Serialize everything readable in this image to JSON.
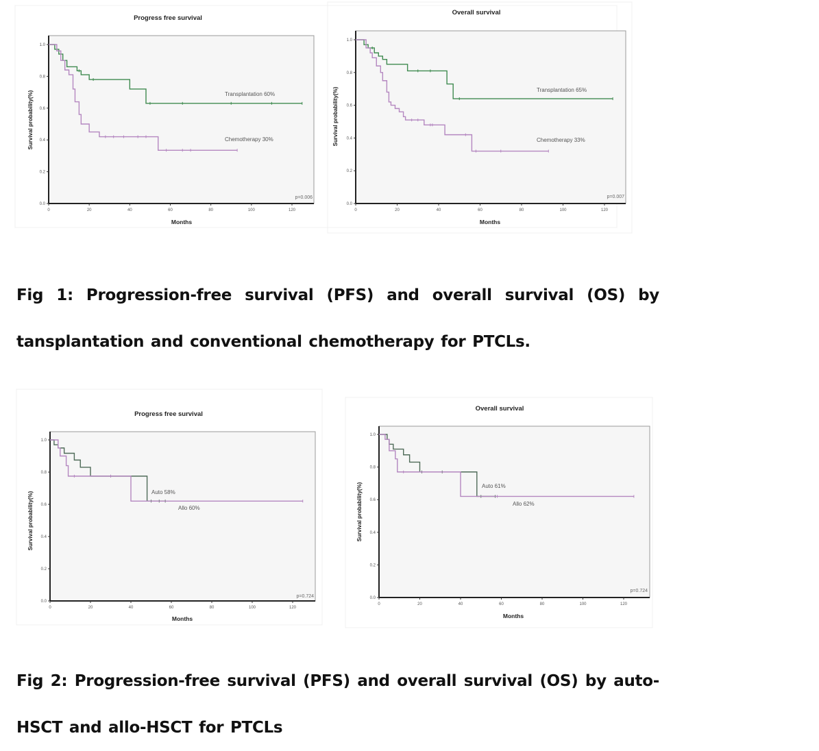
{
  "colors": {
    "transplant": "#3f8a4f",
    "chemo": "#b487c0",
    "auto": "#4f6b58",
    "allo": "#b487c0",
    "plot_bg": "#f6f6f6"
  },
  "chart_data": [
    {
      "type": "line",
      "title": "Progress free survival",
      "xlabel": "Months",
      "ylabel": "Survival probability(%)",
      "xlim": [
        0,
        130
      ],
      "ylim": [
        0,
        1.05
      ],
      "xticks": [
        "0",
        "20",
        "40",
        "60",
        "80",
        "100",
        "120"
      ],
      "yticks": [
        "0.0",
        "0.2",
        "0.4",
        "0.6",
        "0.8",
        "1.0"
      ],
      "p_value": "p=0.006",
      "series": [
        {
          "name": "Transplantation 60%",
          "color_key": "transplant",
          "steps": [
            [
              0,
              1
            ],
            [
              3,
              0.97
            ],
            [
              5,
              0.94
            ],
            [
              7,
              0.9
            ],
            [
              9,
              0.86
            ],
            [
              14,
              0.835
            ],
            [
              16,
              0.81
            ],
            [
              20,
              0.78
            ],
            [
              40,
              0.72
            ],
            [
              48,
              0.63
            ]
          ],
          "end": 125,
          "censored": [
            15,
            22,
            50,
            66,
            90,
            110,
            125
          ]
        },
        {
          "name": "Chemotherapy 30%",
          "color_key": "chemo",
          "steps": [
            [
              0,
              1
            ],
            [
              4,
              0.96
            ],
            [
              6,
              0.9
            ],
            [
              8,
              0.84
            ],
            [
              10,
              0.81
            ],
            [
              12,
              0.72
            ],
            [
              13,
              0.64
            ],
            [
              15,
              0.56
            ],
            [
              16,
              0.5
            ],
            [
              20,
              0.45
            ],
            [
              25,
              0.42
            ],
            [
              54,
              0.335
            ]
          ],
          "end": 93,
          "censored": [
            28,
            32,
            37,
            44,
            48,
            58,
            66,
            70,
            93
          ]
        }
      ]
    },
    {
      "type": "line",
      "title": "Overall survival",
      "xlabel": "Months",
      "ylabel": "Survival probability(%)",
      "xlim": [
        0,
        130
      ],
      "ylim": [
        0,
        1.05
      ],
      "xticks": [
        "0",
        "20",
        "40",
        "60",
        "80",
        "100",
        "120"
      ],
      "yticks": [
        "0.0",
        "0.2",
        "0.4",
        "0.6",
        "0.8",
        "1.0"
      ],
      "p_value": "p=0.007",
      "series": [
        {
          "name": "Transplantation 65%",
          "color_key": "transplant",
          "steps": [
            [
              0,
              1
            ],
            [
              4,
              0.97
            ],
            [
              6,
              0.95
            ],
            [
              9,
              0.92
            ],
            [
              11,
              0.9
            ],
            [
              13,
              0.88
            ],
            [
              15,
              0.85
            ],
            [
              25,
              0.81
            ],
            [
              44,
              0.73
            ],
            [
              47,
              0.64
            ]
          ],
          "end": 124,
          "censored": [
            8,
            30,
            36,
            50,
            124
          ]
        },
        {
          "name": "Chemotherapy 33%",
          "color_key": "chemo",
          "steps": [
            [
              0,
              1
            ],
            [
              5,
              0.95
            ],
            [
              7,
              0.92
            ],
            [
              8,
              0.89
            ],
            [
              10,
              0.84
            ],
            [
              12,
              0.8
            ],
            [
              13,
              0.75
            ],
            [
              15,
              0.68
            ],
            [
              16,
              0.62
            ],
            [
              17,
              0.6
            ],
            [
              19,
              0.58
            ],
            [
              21,
              0.56
            ],
            [
              23,
              0.53
            ],
            [
              24,
              0.51
            ],
            [
              33,
              0.48
            ],
            [
              43,
              0.42
            ],
            [
              56,
              0.32
            ]
          ],
          "end": 93,
          "censored": [
            27,
            30,
            36,
            37,
            53,
            58,
            70,
            93
          ]
        }
      ]
    },
    {
      "type": "line",
      "title": "Progress free survival",
      "xlabel": "Months",
      "ylabel": "Survival probability(%)",
      "xlim": [
        0,
        130
      ],
      "ylim": [
        0,
        1.05
      ],
      "xticks": [
        "0",
        "20",
        "40",
        "60",
        "80",
        "100",
        "120"
      ],
      "yticks": [
        "0.0",
        "0.2",
        "0.4",
        "0.6",
        "0.8",
        "1.0"
      ],
      "p_value": "p=0.724",
      "series": [
        {
          "name": "Auto 58%",
          "color_key": "auto",
          "steps": [
            [
              0,
              1
            ],
            [
              2,
              0.97
            ],
            [
              4,
              0.95
            ],
            [
              7,
              0.917
            ],
            [
              12,
              0.875
            ],
            [
              15,
              0.83
            ],
            [
              20,
              0.775
            ],
            [
              48,
              0.62
            ]
          ],
          "end": 57,
          "censored": [
            30,
            50,
            54,
            57
          ]
        },
        {
          "name": "Allo 60%",
          "color_key": "allo",
          "steps": [
            [
              0,
              1
            ],
            [
              4,
              0.95
            ],
            [
              5,
              0.9
            ],
            [
              8,
              0.84
            ],
            [
              9,
              0.775
            ],
            [
              40,
              0.62
            ]
          ],
          "end": 125,
          "censored": [
            12,
            30,
            125
          ]
        }
      ]
    },
    {
      "type": "line",
      "title": "Overall survival",
      "xlabel": "Months",
      "ylabel": "Survival probability(%)",
      "xlim": [
        0,
        130
      ],
      "ylim": [
        0,
        1.05
      ],
      "xticks": [
        "0",
        "20",
        "40",
        "60",
        "80",
        "100",
        "120"
      ],
      "yticks": [
        "0.0",
        "0.2",
        "0.4",
        "0.6",
        "0.8",
        "1.0"
      ],
      "p_value": "p=0.724",
      "series": [
        {
          "name": "Auto 61%",
          "color_key": "auto",
          "steps": [
            [
              0,
              1
            ],
            [
              4,
              0.97
            ],
            [
              5,
              0.94
            ],
            [
              7,
              0.91
            ],
            [
              12,
              0.875
            ],
            [
              15,
              0.83
            ],
            [
              20,
              0.77
            ],
            [
              48,
              0.62
            ]
          ],
          "end": 57,
          "censored": [
            21,
            31,
            50,
            57
          ]
        },
        {
          "name": "Allo 62%",
          "color_key": "allo",
          "steps": [
            [
              0,
              1
            ],
            [
              3,
              0.97
            ],
            [
              5,
              0.9
            ],
            [
              8,
              0.85
            ],
            [
              9,
              0.77
            ],
            [
              40,
              0.62
            ]
          ],
          "end": 125,
          "censored": [
            12,
            58,
            125
          ]
        }
      ]
    }
  ],
  "captions": [
    "Fig 1: Progression-free survival (PFS) and overall survival (OS) by tansplantation and conventional chemotherapy for PTCLs.",
    "Fig 2: Progression-free survival (PFS) and overall survival (OS) by auto-HSCT and allo-HSCT for PTCLs"
  ]
}
